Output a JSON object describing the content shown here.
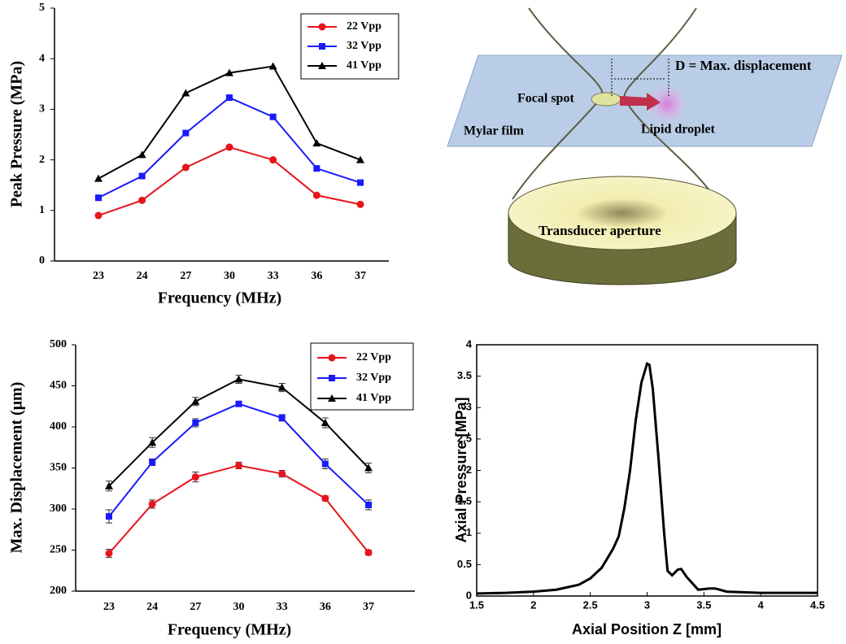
{
  "chart_data": [
    {
      "type": "line",
      "xlabel": "Frequency (MHz)",
      "ylabel": "Peak Pressure (MPa)",
      "categories": [
        "23",
        "24",
        "27",
        "30",
        "33",
        "36",
        "37"
      ],
      "ylim": [
        0,
        5
      ],
      "yticks": [
        0,
        1,
        2,
        3,
        4,
        5
      ],
      "legend": "upper right",
      "series": [
        {
          "name": "22 Vpp",
          "color": "#e8141c",
          "marker": "circle",
          "values": [
            0.9,
            1.2,
            1.85,
            2.25,
            2.0,
            1.3,
            1.12
          ]
        },
        {
          "name": "32 Vpp",
          "color": "#1a1aff",
          "marker": "square",
          "values": [
            1.25,
            1.68,
            2.53,
            3.23,
            2.85,
            1.83,
            1.55
          ]
        },
        {
          "name": "41 Vpp",
          "color": "#000000",
          "marker": "triangle",
          "values": [
            1.63,
            2.1,
            3.32,
            3.72,
            3.85,
            2.33,
            2.0
          ]
        }
      ]
    },
    {
      "type": "line",
      "xlabel": "Frequency (MHz)",
      "ylabel": "Max. Displacement (μm)",
      "categories": [
        "23",
        "24",
        "27",
        "30",
        "33",
        "36",
        "37"
      ],
      "ylim": [
        200,
        500
      ],
      "yticks": [
        200,
        250,
        300,
        350,
        400,
        450,
        500
      ],
      "legend": "upper right",
      "series": [
        {
          "name": "22 Vpp",
          "color": "#e8141c",
          "marker": "circle",
          "values": [
            246,
            306,
            339,
            353,
            343,
            313,
            247
          ],
          "errors": [
            5,
            5,
            6,
            4,
            4,
            3,
            3
          ]
        },
        {
          "name": "32 Vpp",
          "color": "#1a1aff",
          "marker": "square",
          "values": [
            291,
            357,
            405,
            428,
            411,
            355,
            305
          ],
          "errors": [
            8,
            4,
            5,
            3,
            4,
            6,
            6
          ]
        },
        {
          "name": "41 Vpp",
          "color": "#000000",
          "marker": "triangle",
          "values": [
            328,
            381,
            431,
            458,
            448,
            405,
            350
          ],
          "errors": [
            6,
            6,
            5,
            5,
            5,
            6,
            6
          ]
        }
      ]
    },
    {
      "type": "xyline",
      "xlabel": "Axial Position Z [mm]",
      "ylabel": "Axial Pressure [MPa]",
      "color": "#000000",
      "x": [
        1.5,
        1.75,
        2.0,
        2.2,
        2.4,
        2.5,
        2.6,
        2.7,
        2.75,
        2.8,
        2.85,
        2.9,
        2.95,
        3.0,
        3.02,
        3.05,
        3.1,
        3.15,
        3.18,
        3.22,
        3.27,
        3.3,
        3.35,
        3.45,
        3.55,
        3.6,
        3.7,
        4.0,
        4.5
      ],
      "values": [
        0.04,
        0.05,
        0.07,
        0.1,
        0.18,
        0.28,
        0.45,
        0.75,
        0.95,
        1.4,
        2.0,
        2.8,
        3.4,
        3.7,
        3.68,
        3.3,
        2.2,
        1.0,
        0.4,
        0.33,
        0.42,
        0.43,
        0.3,
        0.1,
        0.12,
        0.12,
        0.07,
        0.05,
        0.05
      ],
      "xlim": [
        1.5,
        4.5
      ],
      "xticks": [
        1.5,
        2,
        2.5,
        3,
        3.5,
        4,
        4.5
      ],
      "ylim": [
        0,
        4
      ],
      "yticks": [
        0,
        0.5,
        1,
        1.5,
        2,
        2.5,
        3,
        3.5,
        4
      ]
    }
  ],
  "diagram": {
    "labels": [
      "D = Max. displacement",
      "Focal spot",
      "Lipid droplet",
      "Mylar film",
      "Transducer aperture"
    ]
  }
}
